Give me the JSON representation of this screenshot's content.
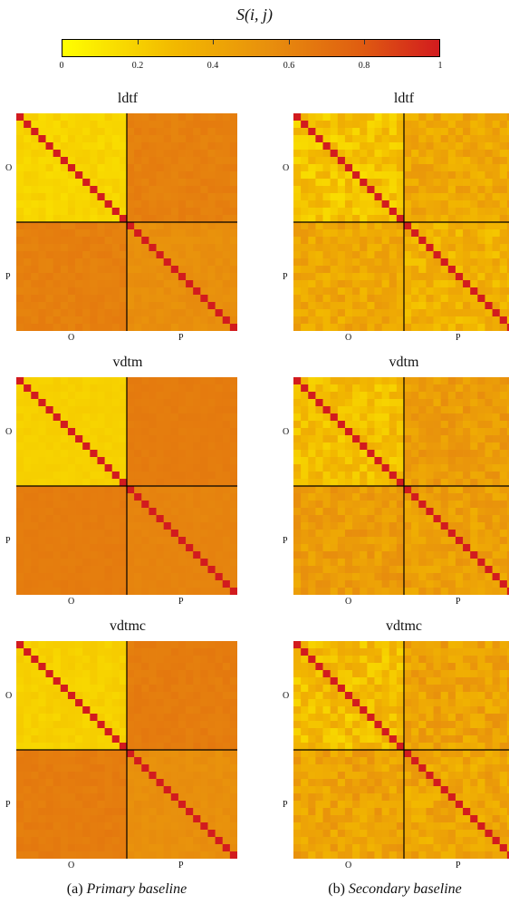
{
  "colorbar": {
    "title": "S(i, j)",
    "ticks": [
      "0",
      "0.2",
      "0.4",
      "0.6",
      "0.8",
      "1"
    ]
  },
  "panels": [
    {
      "title": "ldtf"
    },
    {
      "title": "ldtf"
    },
    {
      "title": "vdtm"
    },
    {
      "title": "vdtm"
    },
    {
      "title": "vdtmc"
    },
    {
      "title": "vdtmc"
    }
  ],
  "labels": {
    "o": "O",
    "p": "P"
  },
  "captions": {
    "a_prefix": "(a) ",
    "a_text": "Primary baseline",
    "b_prefix": "(b) ",
    "b_text": "Secondary baseline"
  },
  "chart_data": {
    "type": "heatmap",
    "value_range": [
      0,
      1
    ],
    "groups": [
      "O",
      "P"
    ],
    "n_per_group": 15,
    "colormap": [
      "#ffff00",
      "#f2b800",
      "#e88f0d",
      "#e06010",
      "#d21b1e"
    ],
    "heatmaps": [
      {
        "column": "Primary baseline",
        "method": "ldtf",
        "diag": 1.0,
        "oo": 0.12,
        "cross": 0.58,
        "pp": 0.5,
        "noise": 0.06
      },
      {
        "column": "Secondary baseline",
        "method": "ldtf",
        "diag": 1.0,
        "oo": 0.12,
        "cross": 0.35,
        "pp": 0.3,
        "noise": 0.2
      },
      {
        "column": "Primary baseline",
        "method": "vdtm",
        "diag": 1.0,
        "oo": 0.15,
        "cross": 0.6,
        "pp": 0.56,
        "noise": 0.03
      },
      {
        "column": "Secondary baseline",
        "method": "vdtm",
        "diag": 1.0,
        "oo": 0.15,
        "cross": 0.42,
        "pp": 0.4,
        "noise": 0.18
      },
      {
        "column": "Primary baseline",
        "method": "vdtmc",
        "diag": 1.0,
        "oo": 0.14,
        "cross": 0.6,
        "pp": 0.5,
        "noise": 0.05
      },
      {
        "column": "Secondary baseline",
        "method": "vdtmc",
        "diag": 1.0,
        "oo": 0.14,
        "cross": 0.38,
        "pp": 0.36,
        "noise": 0.22
      }
    ]
  }
}
